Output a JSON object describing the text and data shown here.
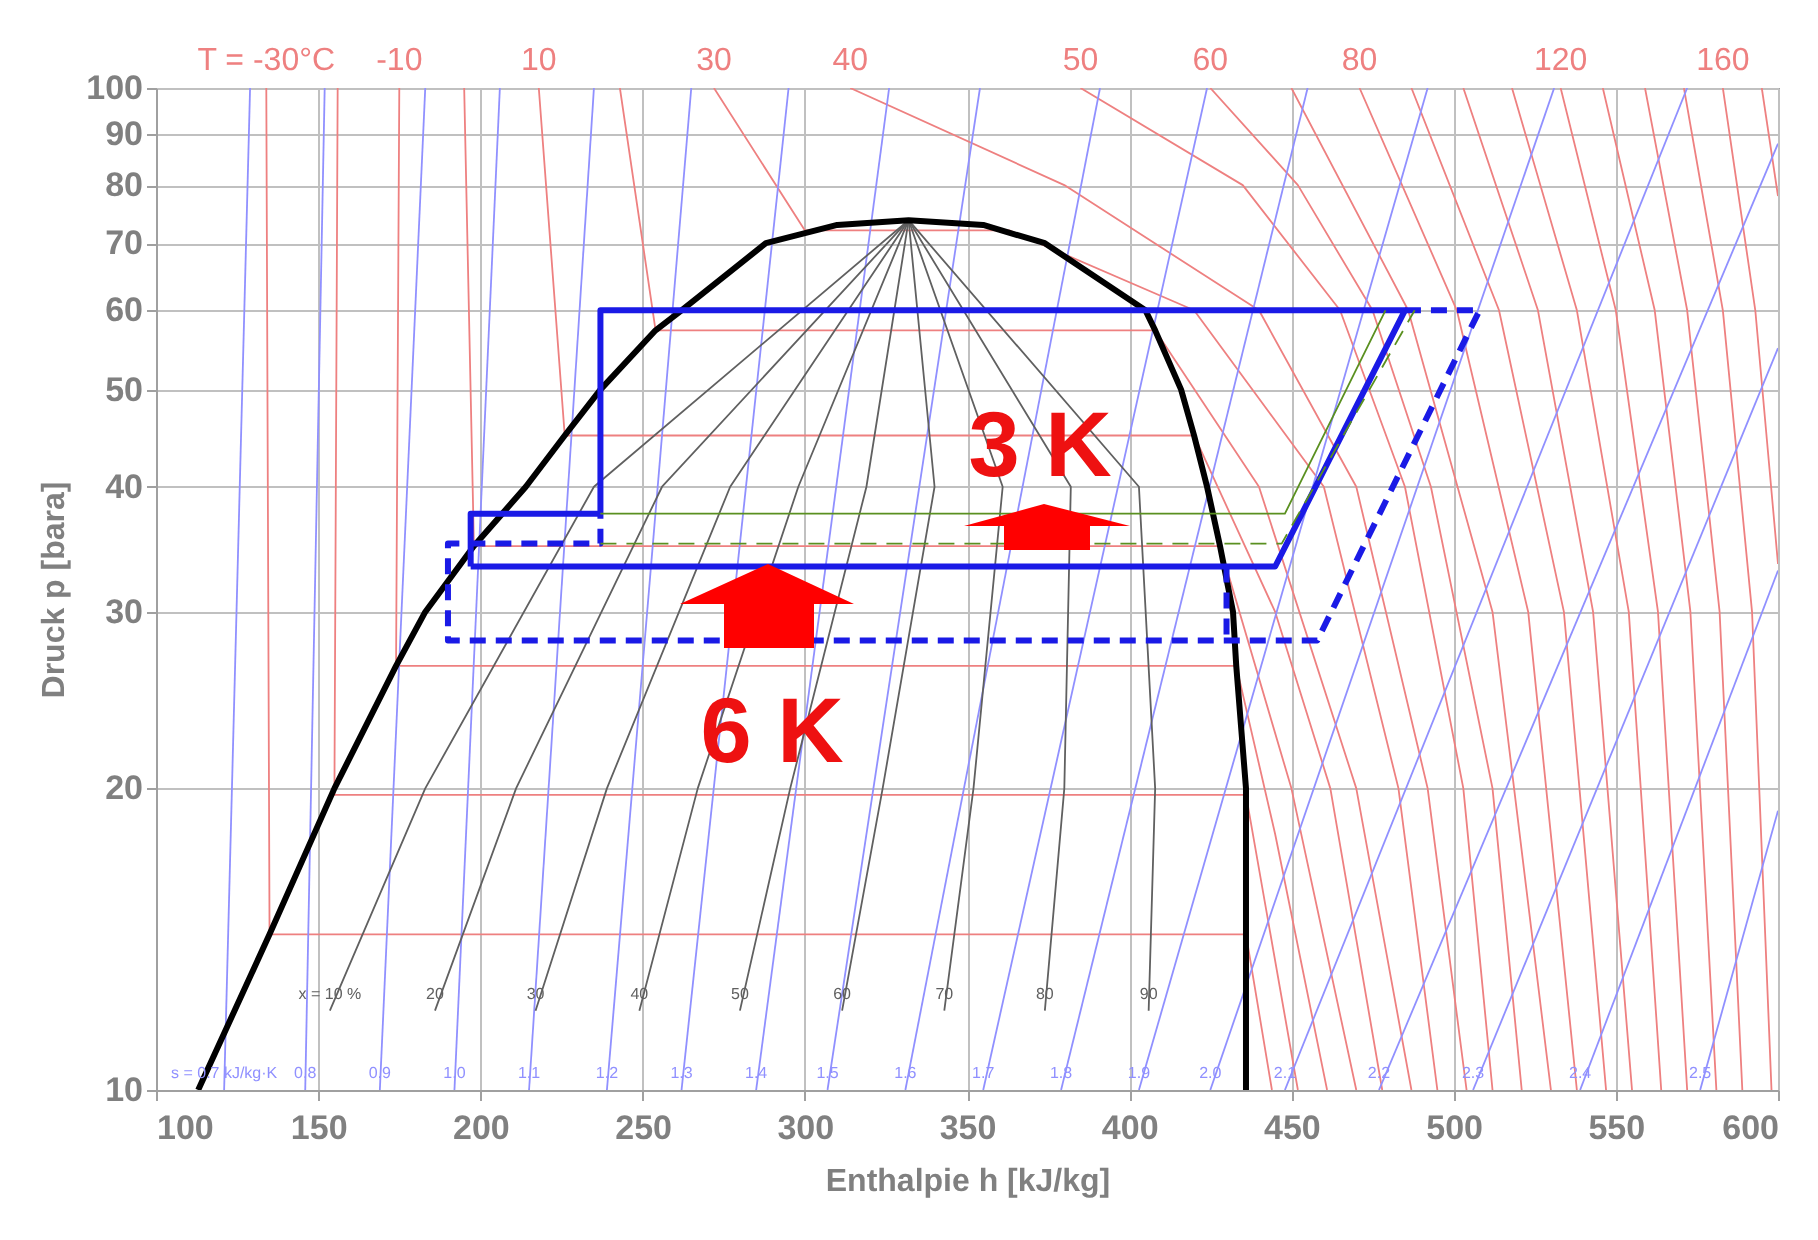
{
  "chart_data": {
    "type": "line",
    "xlabel": "Enthalpie h [kJ/kg]",
    "ylabel": "Druck p [bara]",
    "xlim": [
      100,
      600
    ],
    "xticks": [
      100,
      150,
      200,
      250,
      300,
      350,
      400,
      450,
      500,
      550,
      600
    ],
    "ylim": [
      10,
      100
    ],
    "yticks": [
      10,
      20,
      30,
      40,
      50,
      60,
      70,
      80,
      90,
      100
    ],
    "log": "y",
    "grid": true,
    "series": [
      {
        "name": "T = -30°C",
        "color": "#ee8080",
        "x": [
          134,
          135,
          436,
          444
        ],
        "values": [
          100,
          14.3,
          14.3,
          10
        ]
      },
      {
        "color": "#ee8080",
        "x": [
          156,
          155,
          436,
          452
        ],
        "values": [
          100,
          19.7,
          19.7,
          10
        ]
      },
      {
        "name": "-10",
        "color": "#ee8080",
        "x": [
          175,
          174,
          433,
          445,
          461
        ],
        "values": [
          100,
          26.5,
          26.5,
          18,
          10
        ]
      },
      {
        "color": "#ee8080",
        "x": [
          195,
          198,
          428,
          450,
          470
        ],
        "values": [
          100,
          34.9,
          34.9,
          20,
          10
        ]
      },
      {
        "name": "10",
        "color": "#ee8080",
        "x": [
          218,
          226,
          420,
          445,
          462,
          478
        ],
        "values": [
          100,
          45,
          45,
          30,
          20,
          10
        ]
      },
      {
        "color": "#ee8080",
        "x": [
          243,
          254,
          408,
          440,
          470,
          487
        ],
        "values": [
          100,
          57.3,
          57.3,
          40,
          20,
          10
        ]
      },
      {
        "name": "30",
        "color": "#ee8080",
        "x": [
          272,
          300,
          363,
          420,
          460,
          483,
          495
        ],
        "values": [
          100,
          72.1,
          72.1,
          60,
          40,
          20,
          10
        ]
      },
      {
        "name": "40",
        "color": "#ee8080",
        "x": [
          314,
          380,
          440,
          470,
          492,
          504
        ],
        "values": [
          100,
          80,
          60,
          40,
          20,
          10
        ]
      },
      {
        "name": "50",
        "color": "#ee8080",
        "x": [
          385,
          435,
          465,
          485,
          503,
          512
        ],
        "values": [
          100,
          80,
          60,
          40,
          20,
          10
        ]
      },
      {
        "name": "60",
        "color": "#ee8080",
        "x": [
          425,
          452,
          475,
          493,
          512,
          521
        ],
        "values": [
          100,
          80,
          60,
          40,
          20,
          10
        ]
      },
      {
        "color": "#ee8080",
        "x": [
          450,
          486,
          512,
          530
        ],
        "values": [
          100,
          60,
          30,
          10
        ]
      },
      {
        "name": "80",
        "color": "#ee8080",
        "x": [
          471,
          501,
          523,
          538
        ],
        "values": [
          100,
          60,
          30,
          10
        ]
      },
      {
        "color": "#ee8080",
        "x": [
          487,
          514,
          534,
          547
        ],
        "values": [
          100,
          60,
          30,
          10
        ]
      },
      {
        "color": "#ee8080",
        "x": [
          503,
          526,
          543,
          555
        ],
        "values": [
          100,
          60,
          30,
          10
        ]
      },
      {
        "color": "#ee8080",
        "x": [
          518,
          538,
          554,
          564
        ],
        "values": [
          100,
          60,
          30,
          10
        ]
      },
      {
        "name": "120",
        "color": "#ee8080",
        "x": [
          533,
          550,
          563,
          572
        ],
        "values": [
          100,
          60,
          30,
          10
        ]
      },
      {
        "color": "#ee8080",
        "x": [
          546,
          562,
          573,
          581
        ],
        "values": [
          100,
          60,
          30,
          10
        ]
      },
      {
        "color": "#ee8080",
        "x": [
          559,
          572,
          582,
          589
        ],
        "values": [
          100,
          60,
          30,
          10
        ]
      },
      {
        "color": "#ee8080",
        "x": [
          571,
          583,
          592,
          598
        ],
        "values": [
          100,
          60,
          30,
          10
        ]
      },
      {
        "name": "160",
        "color": "#ee8080",
        "x": [
          583,
          593,
          600
        ],
        "values": [
          100,
          60,
          33.5
        ]
      },
      {
        "color": "#ee8080",
        "x": [
          595,
          600
        ],
        "values": [
          100,
          78
        ]
      },
      {
        "name": "s = 0.7 kJ/kg·K",
        "color": "#9090ff",
        "x": [
          121,
          129
        ],
        "values": [
          10,
          100
        ]
      },
      {
        "name": "0.8",
        "color": "#9090ff",
        "x": [
          146,
          152
        ],
        "values": [
          10,
          100
        ]
      },
      {
        "name": "0.9",
        "color": "#9090ff",
        "x": [
          169,
          183
        ],
        "values": [
          10,
          100
        ]
      },
      {
        "name": "1.0",
        "color": "#9090ff",
        "x": [
          192,
          206
        ],
        "values": [
          10,
          100
        ]
      },
      {
        "name": "1.1",
        "color": "#9090ff",
        "x": [
          215,
          235
        ],
        "values": [
          10,
          100
        ]
      },
      {
        "name": "1.2",
        "color": "#9090ff",
        "x": [
          239,
          265
        ],
        "values": [
          10,
          100
        ]
      },
      {
        "name": "1.3",
        "color": "#9090ff",
        "x": [
          262,
          295
        ],
        "values": [
          10,
          100
        ]
      },
      {
        "name": "1.4",
        "color": "#9090ff",
        "x": [
          285,
          326
        ],
        "values": [
          10,
          100
        ]
      },
      {
        "name": "1.5",
        "color": "#9090ff",
        "x": [
          307,
          354
        ],
        "values": [
          10,
          100
        ]
      },
      {
        "name": "1.6",
        "color": "#9090ff",
        "x": [
          331,
          391
        ],
        "values": [
          10,
          100
        ]
      },
      {
        "name": "1.7",
        "color": "#9090ff",
        "x": [
          355,
          424
        ],
        "values": [
          10,
          100
        ]
      },
      {
        "name": "1.8",
        "color": "#9090ff",
        "x": [
          379,
          455
        ],
        "values": [
          10,
          100
        ]
      },
      {
        "name": "1.9",
        "color": "#9090ff",
        "x": [
          403,
          492
        ],
        "values": [
          10,
          100
        ]
      },
      {
        "name": "2.0",
        "color": "#9090ff",
        "x": [
          425,
          531
        ],
        "values": [
          10,
          100
        ]
      },
      {
        "name": "2.1",
        "color": "#9090ff",
        "x": [
          448,
          572
        ],
        "values": [
          10,
          100
        ]
      },
      {
        "name": "2.2",
        "color": "#9090ff",
        "x": [
          477,
          600
        ],
        "values": [
          10,
          88
        ]
      },
      {
        "name": "2.3",
        "color": "#9090ff",
        "x": [
          506,
          600
        ],
        "values": [
          10,
          55
        ]
      },
      {
        "name": "2.4",
        "color": "#9090ff",
        "x": [
          539,
          600
        ],
        "values": [
          10,
          33
        ]
      },
      {
        "name": "2.5",
        "color": "#9090ff",
        "x": [
          576,
          600
        ],
        "values": [
          10,
          19
        ]
      },
      {
        "name": "x = 10 %",
        "color": "#606060",
        "x": [
          153.6,
          183,
          235,
          332
        ],
        "values": [
          12,
          20,
          40,
          73.8
        ]
      },
      {
        "name": "20",
        "color": "#606060",
        "x": [
          186,
          211,
          256,
          332
        ],
        "values": [
          12,
          20,
          40,
          73.8
        ]
      },
      {
        "name": "30",
        "color": "#606060",
        "x": [
          217,
          239,
          277,
          332
        ],
        "values": [
          12,
          20,
          40,
          73.8
        ]
      },
      {
        "name": "40",
        "color": "#606060",
        "x": [
          249,
          267,
          298,
          332
        ],
        "values": [
          12,
          20,
          40,
          73.8
        ]
      },
      {
        "name": "50",
        "color": "#606060",
        "x": [
          280,
          295.5,
          319,
          332
        ],
        "values": [
          12,
          20,
          40,
          73.8
        ]
      },
      {
        "name": "60",
        "color": "#606060",
        "x": [
          311.5,
          324,
          340,
          332
        ],
        "values": [
          12,
          20,
          40,
          73.8
        ]
      },
      {
        "name": "70",
        "color": "#606060",
        "x": [
          343,
          352,
          361,
          332
        ],
        "values": [
          12,
          20,
          40,
          73.8
        ]
      },
      {
        "name": "80",
        "color": "#606060",
        "x": [
          374,
          380,
          382,
          332
        ],
        "values": [
          12,
          20,
          40,
          73.8
        ]
      },
      {
        "name": "90",
        "color": "#606060",
        "x": [
          406,
          408,
          403,
          332
        ],
        "values": [
          12,
          20,
          40,
          73.8
        ]
      },
      {
        "color": "#000000",
        "x": [
          113,
          135,
          155,
          174,
          183,
          198,
          214,
          226,
          237,
          254,
          262,
          288,
          310,
          332,
          355,
          374,
          405,
          408,
          416,
          420,
          424,
          428,
          432,
          433,
          436,
          436,
          436
        ],
        "values": [
          10,
          14.3,
          20,
          26.5,
          30,
          34.9,
          40,
          45,
          50,
          57.3,
          60,
          70,
          73,
          73.8,
          73,
          70,
          60,
          57.3,
          50,
          45,
          40,
          34.9,
          30,
          26.5,
          20,
          14.3,
          10
        ]
      },
      {
        "color": "#1a1ae6",
        "x": [
          237,
          237,
          485,
          445,
          197
        ],
        "values": [
          37.6,
          60,
          60,
          33.3,
          33.3
        ]
      },
      {
        "color": "#1a1ae6",
        "x": [
          197,
          197,
          237
        ],
        "values": [
          33.3,
          37.6,
          37.6
        ]
      },
      {
        "color": "#1a1ae6",
        "line_style": "dashed",
        "x": [
          485,
          508,
          458,
          190,
          190,
          237,
          237
        ],
        "values": [
          60,
          60,
          28.1,
          28.1,
          35.1,
          35.1,
          37.6
        ]
      },
      {
        "color": "#1a1ae6",
        "line_style": "dashed",
        "x": [
          430,
          430
        ],
        "values": [
          33.3,
          28.1
        ]
      },
      {
        "color": "#5a9020",
        "x": [
          237,
          448,
          479
        ],
        "values": [
          37.6,
          37.6,
          60
        ]
      },
      {
        "color": "#5a9020",
        "line_style": "dashed",
        "x": [
          237,
          447,
          488
        ],
        "values": [
          35.1,
          35.1,
          60
        ]
      }
    ],
    "annotations": [
      "3 K",
      "6 K"
    ]
  }
}
